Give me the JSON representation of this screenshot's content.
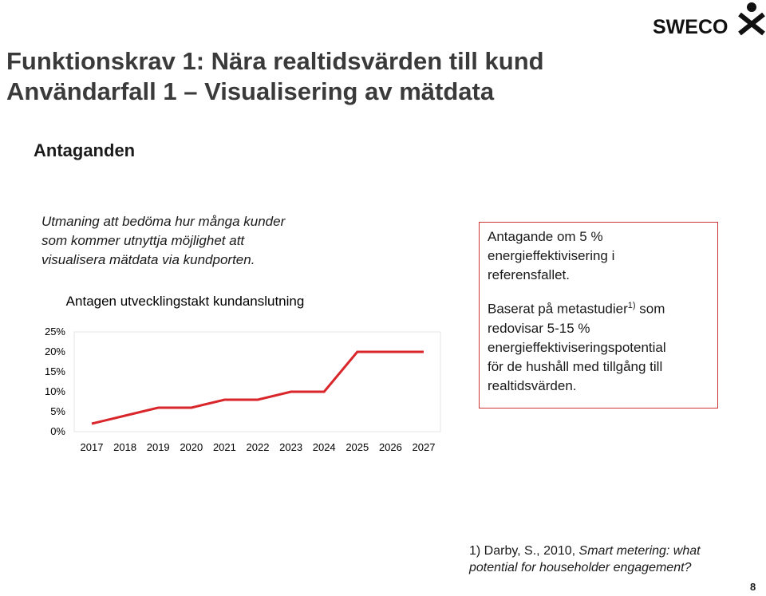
{
  "header": {
    "title_line1": "Funktionskrav 1: Nära realtidsvärden till kund",
    "title_line2": "Användarfall 1 – Visualisering av mätdata",
    "logo": "SWECO"
  },
  "section": "Antaganden",
  "challenge": {
    "line1": "Utmaning att bedöma hur många kunder",
    "line2": "som kommer utnyttja möjlighet att",
    "line3": "visualisera mätdata via kundporten."
  },
  "chart": {
    "type": "line",
    "title": "Antagen utvecklingstakt kundanslutning",
    "categories": [
      "2017",
      "2018",
      "2019",
      "2020",
      "2021",
      "2022",
      "2023",
      "2024",
      "2025",
      "2026",
      "2027"
    ],
    "values": [
      2,
      4,
      6,
      6,
      8,
      8,
      10,
      10,
      20,
      20,
      20
    ],
    "color": "#d9262b",
    "ylim": [
      0,
      25
    ],
    "yticks": [
      {
        "value": 0,
        "label": "0%"
      },
      {
        "value": 5,
        "label": "5%"
      },
      {
        "value": 10,
        "label": "10%"
      },
      {
        "value": 15,
        "label": "15%"
      },
      {
        "value": 20,
        "label": "20%"
      },
      {
        "value": 25,
        "label": "25%"
      }
    ]
  },
  "box": {
    "p1_line1": "Antagande om 5 %",
    "p1_line2": "energieffektivisering i",
    "p1_line3": "referensfallet.",
    "p2_line1_before": "Baserat på metastudier",
    "p2_line1_sup": "1)",
    "p2_line1_after": " som",
    "p2_line2": "redovisar 5-15 %",
    "p2_line3": "energieffektiviseringspotential",
    "p2_line4": "för de hushåll med tillgång till",
    "p2_line5": "realtidsvärden."
  },
  "footnote": {
    "line1_plain": "1) Darby, S., 2010, ",
    "line1_italic": "Smart metering: what",
    "line2_italic": "potential for householder engagement?"
  },
  "page_number": "8"
}
